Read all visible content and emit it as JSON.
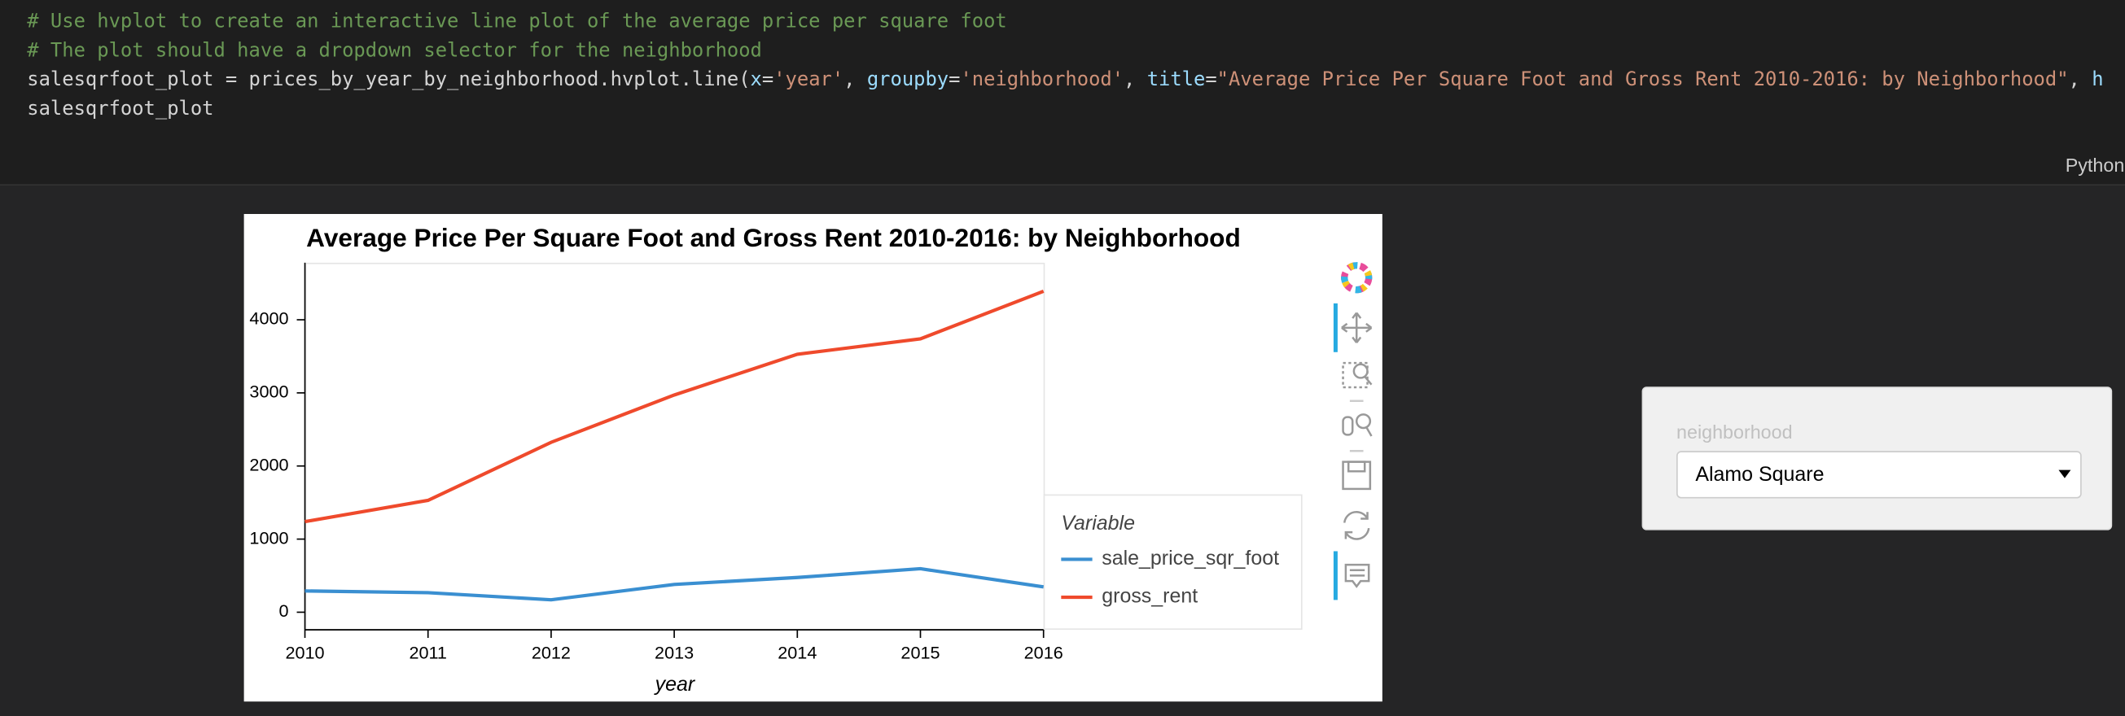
{
  "code": {
    "lines": [
      {
        "tokens": [
          {
            "text": "# Use hvplot to create an interactive line plot of the average price per square foot",
            "color": "#6a9955"
          }
        ]
      },
      {
        "tokens": [
          {
            "text": "# The plot should have a dropdown selector for the neighborhood",
            "color": "#6a9955"
          }
        ]
      },
      {
        "tokens": [
          {
            "text": "salesqrfoot_plot = prices_by_year_by_neighborhood.hvplot.line(",
            "color": "#d4d4d4"
          },
          {
            "text": "x",
            "color": "#9cdcfe"
          },
          {
            "text": "=",
            "color": "#d4d4d4"
          },
          {
            "text": "'year'",
            "color": "#ce9178"
          },
          {
            "text": ", ",
            "color": "#d4d4d4"
          },
          {
            "text": "groupby",
            "color": "#9cdcfe"
          },
          {
            "text": "=",
            "color": "#d4d4d4"
          },
          {
            "text": "'neighborhood'",
            "color": "#ce9178"
          },
          {
            "text": ", ",
            "color": "#d4d4d4"
          },
          {
            "text": "title",
            "color": "#9cdcfe"
          },
          {
            "text": "=",
            "color": "#d4d4d4"
          },
          {
            "text": "\"Average Price Per Square Foot and Gross Rent 2010-2016: by Neighborhood\"",
            "color": "#ce9178"
          },
          {
            "text": ", ",
            "color": "#d4d4d4"
          },
          {
            "text": "h",
            "color": "#9cdcfe"
          }
        ]
      },
      {
        "tokens": [
          {
            "text": "salesqrfoot_plot",
            "color": "#d4d4d4"
          }
        ]
      }
    ],
    "language": "Python"
  },
  "chart_data": {
    "type": "line",
    "title": "Average Price Per Square Foot and Gross Rent 2010-2016: by Neighborhood",
    "x_label": "year",
    "legend_title": "Variable",
    "x": [
      2010,
      2011,
      2012,
      2013,
      2014,
      2015,
      2016
    ],
    "series": [
      {
        "name": "sale_price_sqr_foot",
        "color": "#3a8fd1",
        "values": [
          291,
          267,
          170,
          380,
          475,
          595,
          346
        ]
      },
      {
        "name": "gross_rent",
        "color": "#ef4a2c",
        "values": [
          1239,
          1530,
          2324,
          2971,
          3528,
          3739,
          4390
        ]
      }
    ],
    "xlim": [
      2010,
      2016
    ],
    "xticks": [
      2010,
      2011,
      2012,
      2013,
      2014,
      2015,
      2016
    ],
    "ylim": [
      -240,
      4780
    ],
    "yticks": [
      0,
      1000,
      2000,
      3000,
      4000
    ],
    "legend": "right"
  },
  "widget": {
    "label": "neighborhood",
    "selected": "Alamo Square"
  }
}
